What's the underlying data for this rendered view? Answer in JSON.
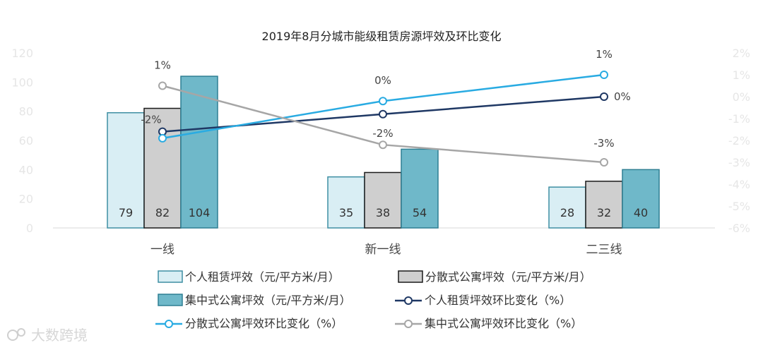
{
  "chart_data": {
    "type": "bar",
    "title": "2019年8月分城市能级租赁房源坪效及环比变化",
    "categories": [
      "一线",
      "新一线",
      "二三线"
    ],
    "ylim": [
      0,
      120
    ],
    "y_ticks": [
      "0",
      "20",
      "40",
      "60",
      "80",
      "100",
      "120"
    ],
    "y2lim": [
      -6,
      2
    ],
    "y2_ticks": [
      "-6%",
      "-5%",
      "-4%",
      "-3%",
      "-2%",
      "-1%",
      "0%",
      "1%",
      "2%"
    ],
    "grid": false,
    "legend_position": "bottom",
    "bar_series": [
      {
        "name": "个人租赁坪效（元/平方米/月）",
        "values": [
          79,
          35,
          28
        ],
        "labels": [
          "79",
          "35",
          "28"
        ],
        "color": "#d9eef4",
        "edge": "#3f8fa3"
      },
      {
        "name": "分散式公寓坪效（元/平方米/月）",
        "values": [
          82,
          38,
          32
        ],
        "labels": [
          "82",
          "38",
          "32"
        ],
        "color": "#cfcfcf",
        "edge": "#1a1a1a"
      },
      {
        "name": "集中式公寓坪效（元/平方米/月）",
        "values": [
          104,
          54,
          40
        ],
        "labels": [
          "104",
          "54",
          "40"
        ],
        "color": "#6fb8c9",
        "edge": "#2f7f93"
      }
    ],
    "line_series": [
      {
        "name": "个人租赁坪效环比变化（%）",
        "values": [
          -1.6,
          -0.8,
          0.0
        ],
        "labels": [
          "-2%",
          "",
          ""
        ],
        "color": "#1f3864"
      },
      {
        "name": "分散式公寓坪效环比变化（%）",
        "values": [
          -1.9,
          -0.2,
          1.0
        ],
        "labels": [
          "",
          "0%",
          "1%"
        ],
        "color": "#29abe2"
      },
      {
        "name": "集中式公寓坪效环比变化（%）",
        "values": [
          0.5,
          -2.2,
          -3.0
        ],
        "labels": [
          "1%",
          "-2%",
          "-3%"
        ],
        "color": "#a6a6a6"
      }
    ]
  },
  "watermark": "大数跨境"
}
